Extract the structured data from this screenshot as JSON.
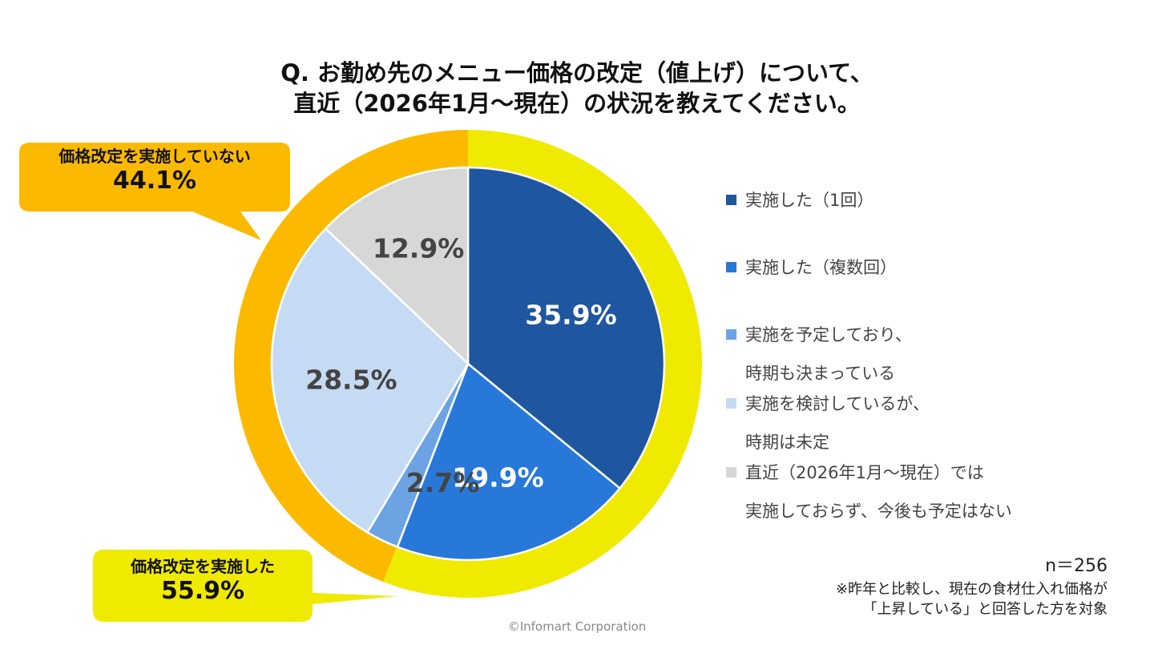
{
  "title_line1": "Q. お勤め先のメニュー価格の改定（値上げ）について、",
  "title_line2": "直近（2026年1月～現在）の状況を教えてください。",
  "chart_data": {
    "type": "pie",
    "inner_slices": [
      {
        "value": 35.9,
        "label": "35.9%",
        "color": "#1E56A0",
        "label_color": "#ffffff"
      },
      {
        "value": 19.9,
        "label": "19.9%",
        "color": "#2878DA",
        "label_color": "#ffffff"
      },
      {
        "value": 2.7,
        "label": "2.7%",
        "color": "#6CA3E3",
        "label_color": "#444444"
      },
      {
        "value": 28.5,
        "label": "28.5%",
        "color": "#C5DAF3",
        "label_color": "#444444"
      },
      {
        "value": 12.9,
        "label": "12.9%",
        "color": "#D7D7D7",
        "label_color": "#444444"
      }
    ],
    "outer_ring": [
      {
        "value": 55.9,
        "color": "#F0EA00"
      },
      {
        "value": 44.1,
        "color": "#FBBA00"
      }
    ],
    "legend": [
      {
        "lines": [
          "実施した（1回）"
        ],
        "color": "#1E56A0"
      },
      {
        "lines": [
          "実施した（複数回）"
        ],
        "color": "#2878DA"
      },
      {
        "lines": [
          "実施を予定しており、",
          "時期も決まっている"
        ],
        "color": "#6CA3E3"
      },
      {
        "lines": [
          "実施を検討しているが、",
          "時期は未定"
        ],
        "color": "#C5DAF3"
      },
      {
        "lines": [
          "直近（2026年1月～現在）では",
          "実施しておらず、今後も予定はない"
        ],
        "color": "#D7D7D7"
      }
    ]
  },
  "callouts": {
    "not_done": {
      "label": "価格改定を実施していない",
      "value": "44.1%",
      "color": "#FBBA00"
    },
    "done": {
      "label": "価格改定を実施した",
      "value": "55.9%",
      "color": "#F0EA00"
    }
  },
  "note": {
    "n": "n＝256",
    "line1": "※昨年と比較し、現在の食材仕入れ価格が",
    "line2": "「上昇している」と回答した方を対象"
  },
  "copyright": "©Infomart Corporation"
}
